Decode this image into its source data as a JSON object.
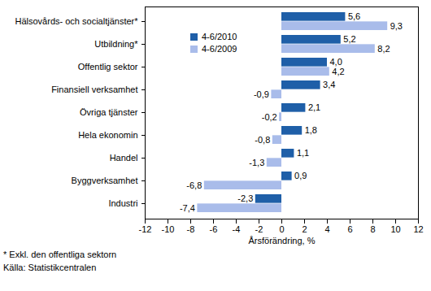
{
  "chart_data": {
    "type": "bar",
    "orientation": "horizontal",
    "categories": [
      "Hälsovårds- och socialtjänster*",
      "Utbildning*",
      "Offentlig sektor",
      "Finansiell verksamhet",
      "Övriga tjänster",
      "Hela ekonomin",
      "Handel",
      "Byggverksamhet",
      "Industri"
    ],
    "series": [
      {
        "name": "4-6/2010",
        "color": "#1f5fa8",
        "values": [
          5.6,
          5.2,
          4.0,
          3.4,
          2.1,
          1.8,
          1.1,
          0.9,
          -2.3
        ],
        "value_labels": [
          "5,6",
          "5,2",
          "4,0",
          "3,4",
          "2,1",
          "1,8",
          "1,1",
          "0,9",
          "-2,3"
        ]
      },
      {
        "name": "4-6/2009",
        "color": "#a9bcea",
        "values": [
          9.3,
          8.2,
          4.2,
          -0.9,
          -0.2,
          -0.8,
          -1.3,
          -6.8,
          -7.4
        ],
        "value_labels": [
          "9,3",
          "8,2",
          "4,2",
          "-0,9",
          "-0,2",
          "-0,8",
          "-1,3",
          "-6,8",
          "-7,4"
        ]
      }
    ],
    "x_label": "Årsförändring, %",
    "xlim": [
      -12,
      12
    ],
    "xticks": [
      -12,
      -10,
      -8,
      -6,
      -4,
      -2,
      0,
      2,
      4,
      6,
      8,
      10,
      12
    ],
    "grid": false,
    "legend": "top-left",
    "data_labels": true,
    "annotations": [
      "* Exkl. den offentliga sektorn",
      "Källa: Statistikcentralen"
    ]
  }
}
